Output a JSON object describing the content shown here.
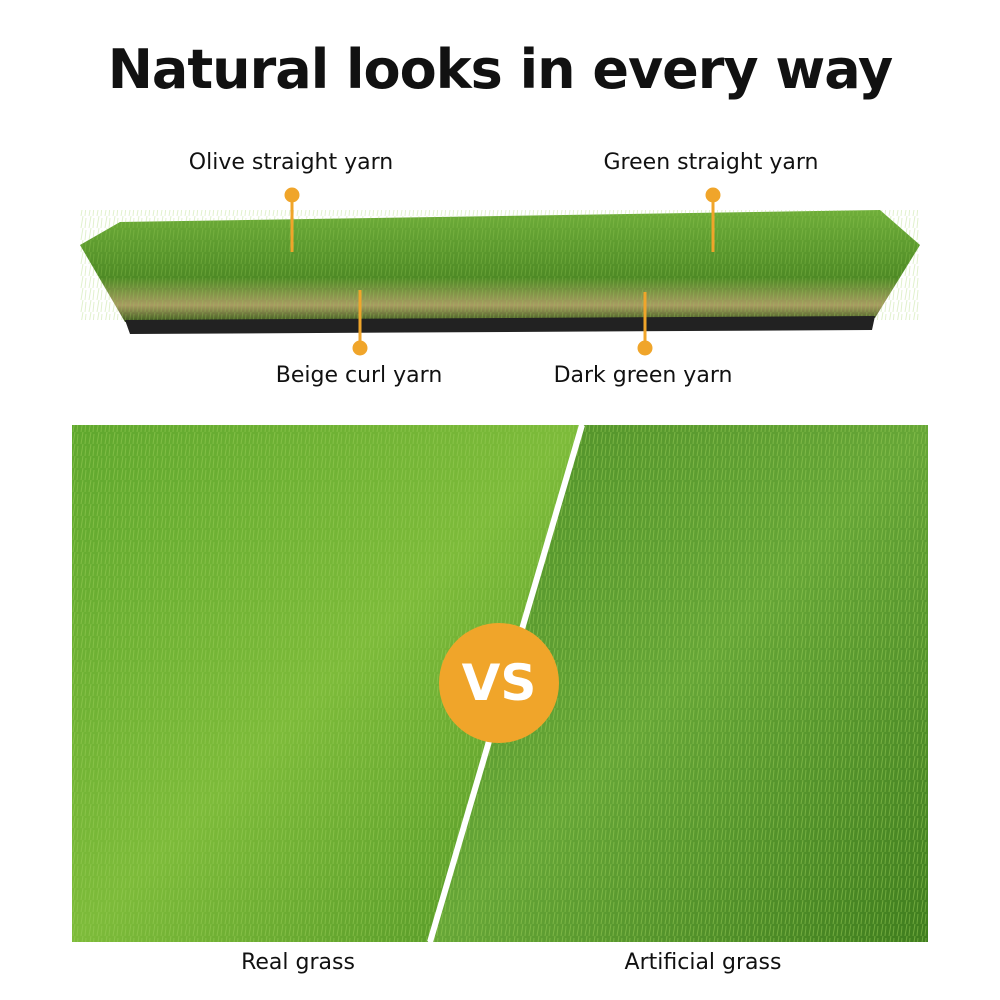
{
  "title": "Natural looks in every way",
  "callouts": [
    {
      "label": "Olive straight yarn"
    },
    {
      "label": "Green straight yarn"
    },
    {
      "label": "Beige curl yarn"
    },
    {
      "label": "Dark green yarn"
    }
  ],
  "comparison": {
    "badge": "VS",
    "left_caption": "Real grass",
    "right_caption": "Artificial grass"
  },
  "colors": {
    "accent": "#F0A52A",
    "grass_light": "#7dbb3a",
    "grass_dark": "#3f7d1e"
  }
}
